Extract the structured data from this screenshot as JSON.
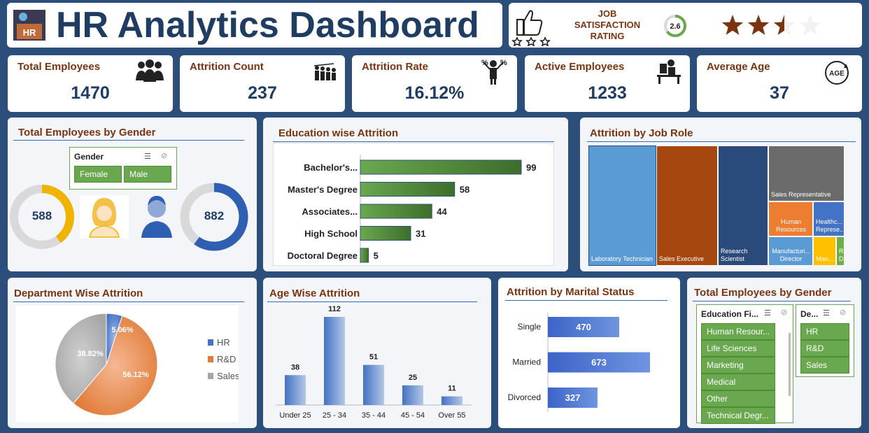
{
  "header": {
    "badge": "HR",
    "title": "HR Analytics Dashboard",
    "rating_label": [
      "JOB",
      "SATISFACTION",
      "RATING"
    ],
    "rating_value": "2.6",
    "rating_stars": 2.5,
    "rating_max": 4
  },
  "kpis": [
    {
      "label": "Total Employees",
      "value": "1470",
      "icon": "people-group-icon"
    },
    {
      "label": "Attrition Count",
      "value": "237",
      "icon": "people-leaving-icon"
    },
    {
      "label": "Attrition Rate",
      "value": "16.12%",
      "icon": "percent-person-icon"
    },
    {
      "label": "Active Employees",
      "value": "1233",
      "icon": "desk-worker-icon"
    },
    {
      "label": "Average Age",
      "value": "37",
      "icon": "age-cycle-icon"
    }
  ],
  "gender_panel": {
    "title": "Total Employees by Gender",
    "slicer_title": "Gender",
    "options": [
      "Female",
      "Male"
    ],
    "female_count": "588",
    "male_count": "882"
  },
  "education_slicers": {
    "title": "Total Employees by Gender",
    "field_title": "Education Fi...",
    "field_options": [
      "Human Resour...",
      "Life Sciences",
      "Marketing",
      "Medical",
      "Other",
      "Technical Degr..."
    ],
    "dept_title": "De...",
    "dept_options": [
      "HR",
      "R&D",
      "Sales"
    ]
  },
  "colors": {
    "accent": "#7a3410",
    "bar_green": "#6aa84f",
    "bar_blue": "#4472c4",
    "female": "#f0b400",
    "male": "#2f5fb3"
  },
  "chart_data": [
    {
      "id": "education",
      "type": "bar",
      "orientation": "horizontal",
      "title": "Education wise Attrition",
      "categories": [
        "Bachelor's...",
        "Master's Degree",
        "Associates...",
        "High School",
        "Doctoral Degree"
      ],
      "values": [
        99,
        58,
        44,
        31,
        5
      ]
    },
    {
      "id": "jobrole",
      "type": "treemap",
      "title": "Attrition by Job Role",
      "labels": [
        "Laboratory Technician",
        "Sales Executive",
        "Research Scientist",
        "Sales Representative",
        "Human Resources",
        "Healthc... Represe...",
        "Manufacturi... Director",
        "Man...",
        "R... D..."
      ]
    },
    {
      "id": "department",
      "type": "pie",
      "title": "Department Wise Attrition",
      "categories": [
        "HR",
        "R&D",
        "Sales"
      ],
      "values": [
        5.06,
        56.12,
        38.82
      ],
      "labels": [
        "5.06%",
        "56.12%",
        "38.82%"
      ],
      "colors": [
        "#4472c4",
        "#e07a35",
        "#a6a6a6"
      ],
      "legend": "right"
    },
    {
      "id": "age",
      "type": "bar",
      "title": "Age Wise Attrition",
      "categories": [
        "Under 25",
        "25 - 34",
        "35 - 44",
        "45 - 54",
        "Over 55"
      ],
      "values": [
        38,
        112,
        51,
        25,
        11
      ]
    },
    {
      "id": "marital",
      "type": "bar",
      "orientation": "horizontal",
      "title": "Attrition by Marital Status",
      "categories": [
        "Single",
        "Married",
        "Divorced"
      ],
      "values": [
        470,
        673,
        327
      ]
    }
  ]
}
